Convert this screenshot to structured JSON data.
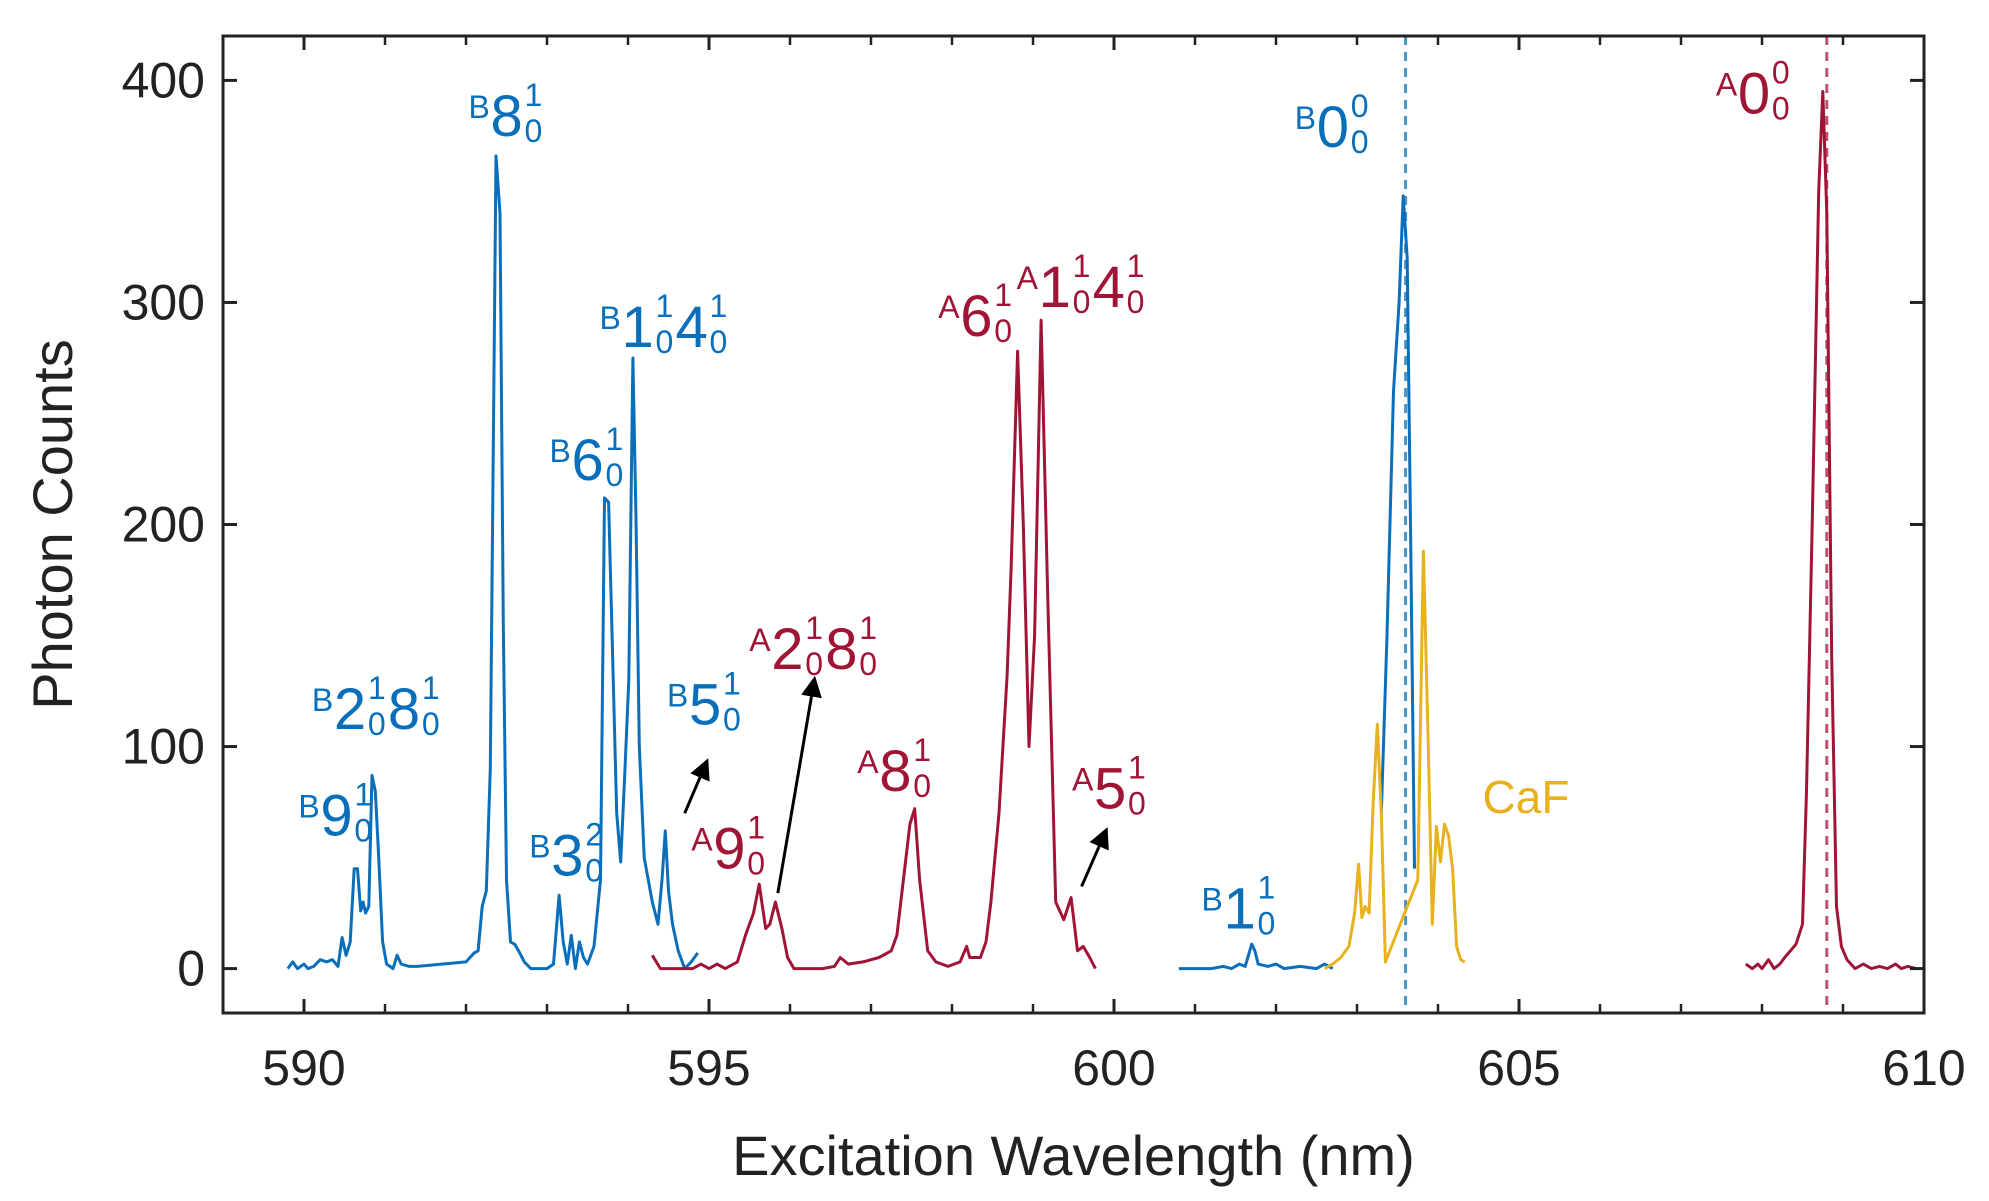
{
  "chart_data": {
    "type": "line",
    "xlabel": "Excitation Wavelength (nm)",
    "ylabel": "Photon Counts",
    "xlim": [
      589,
      610
    ],
    "ylim": [
      -20,
      420
    ],
    "x_ticks": [
      590,
      595,
      600,
      605,
      610
    ],
    "x_minor_ticks": [
      591,
      592,
      593,
      594,
      596,
      597,
      598,
      599,
      601,
      602,
      603,
      604,
      606,
      607,
      608,
      609
    ],
    "y_ticks": [
      0,
      100,
      200,
      300,
      400
    ],
    "colors": {
      "B": "#0a6fba",
      "A": "#a01535",
      "CaF": "#e8b11e",
      "arrow": "#000000"
    },
    "series": [
      {
        "name": "B",
        "color": "#0a6fba",
        "points": [
          [
            589.8,
            0
          ],
          [
            589.86,
            3
          ],
          [
            589.92,
            0
          ],
          [
            590.0,
            2
          ],
          [
            590.05,
            0
          ],
          [
            590.12,
            1
          ],
          [
            590.2,
            4
          ],
          [
            590.28,
            3
          ],
          [
            590.35,
            4
          ],
          [
            590.42,
            1
          ],
          [
            590.47,
            14
          ],
          [
            590.52,
            6
          ],
          [
            590.57,
            12
          ],
          [
            590.62,
            45
          ],
          [
            590.66,
            45
          ],
          [
            590.7,
            26
          ],
          [
            590.73,
            30
          ],
          [
            590.76,
            25
          ],
          [
            590.8,
            28
          ],
          [
            590.84,
            87
          ],
          [
            590.88,
            80
          ],
          [
            590.92,
            52
          ],
          [
            590.97,
            12
          ],
          [
            591.02,
            2
          ],
          [
            591.1,
            0
          ],
          [
            591.15,
            6
          ],
          [
            591.2,
            2
          ],
          [
            591.3,
            1
          ],
          [
            591.4,
            1
          ],
          [
            592.0,
            3
          ],
          [
            592.1,
            7
          ],
          [
            592.15,
            8
          ],
          [
            592.2,
            28
          ],
          [
            592.25,
            35
          ],
          [
            592.3,
            90
          ],
          [
            592.37,
            366
          ],
          [
            592.42,
            340
          ],
          [
            592.46,
            155
          ],
          [
            592.5,
            40
          ],
          [
            592.55,
            12
          ],
          [
            592.6,
            11
          ],
          [
            592.65,
            8
          ],
          [
            592.72,
            3
          ],
          [
            592.8,
            0
          ],
          [
            593.0,
            0
          ],
          [
            593.08,
            2
          ],
          [
            593.15,
            33
          ],
          [
            593.2,
            12
          ],
          [
            593.25,
            2
          ],
          [
            593.3,
            15
          ],
          [
            593.35,
            0
          ],
          [
            593.4,
            12
          ],
          [
            593.45,
            5
          ],
          [
            593.5,
            2
          ],
          [
            593.58,
            10
          ],
          [
            593.66,
            40
          ],
          [
            593.71,
            212
          ],
          [
            593.76,
            210
          ],
          [
            593.8,
            155
          ],
          [
            593.86,
            70
          ],
          [
            593.91,
            48
          ],
          [
            593.96,
            88
          ],
          [
            594.01,
            130
          ],
          [
            594.06,
            275
          ],
          [
            594.1,
            200
          ],
          [
            594.14,
            100
          ],
          [
            594.2,
            50
          ],
          [
            594.3,
            30
          ],
          [
            594.37,
            20
          ],
          [
            594.42,
            40
          ],
          [
            594.46,
            62
          ],
          [
            594.5,
            35
          ],
          [
            594.55,
            20
          ],
          [
            594.62,
            8
          ],
          [
            594.7,
            0
          ],
          [
            594.78,
            3
          ],
          [
            594.86,
            7
          ]
        ]
      },
      {
        "name": "B",
        "color": "#0a6fba",
        "points": [
          [
            600.8,
            0
          ],
          [
            601.0,
            0
          ],
          [
            601.2,
            0
          ],
          [
            601.35,
            1
          ],
          [
            601.45,
            0
          ],
          [
            601.55,
            2
          ],
          [
            601.62,
            1
          ],
          [
            601.7,
            11
          ],
          [
            601.74,
            8
          ],
          [
            601.78,
            2
          ],
          [
            601.9,
            1
          ],
          [
            602.0,
            2
          ],
          [
            602.1,
            0
          ],
          [
            602.3,
            1
          ],
          [
            602.5,
            0
          ],
          [
            602.6,
            2
          ],
          [
            602.7,
            0
          ]
        ]
      },
      {
        "name": "B",
        "color": "#0a6fba",
        "points": [
          [
            603.3,
            70
          ],
          [
            603.37,
            150
          ],
          [
            603.45,
            260
          ],
          [
            603.52,
            300
          ],
          [
            603.57,
            348
          ],
          [
            603.62,
            320
          ],
          [
            603.66,
            200
          ],
          [
            603.71,
            45
          ]
        ]
      },
      {
        "name": "A",
        "color": "#a01535",
        "points": [
          [
            594.3,
            6
          ],
          [
            594.4,
            0
          ],
          [
            594.6,
            0
          ],
          [
            594.8,
            0
          ],
          [
            594.9,
            2
          ],
          [
            595.0,
            0
          ],
          [
            595.1,
            2
          ],
          [
            595.2,
            0
          ],
          [
            595.35,
            3
          ],
          [
            595.45,
            15
          ],
          [
            595.55,
            25
          ],
          [
            595.62,
            38
          ],
          [
            595.7,
            18
          ],
          [
            595.75,
            20
          ],
          [
            595.82,
            30
          ],
          [
            595.9,
            18
          ],
          [
            595.97,
            5
          ],
          [
            596.05,
            0
          ],
          [
            596.2,
            0
          ],
          [
            596.4,
            0
          ],
          [
            596.55,
            1
          ],
          [
            596.62,
            5
          ],
          [
            596.72,
            2
          ],
          [
            596.9,
            3
          ],
          [
            597.1,
            5
          ],
          [
            597.25,
            8
          ],
          [
            597.32,
            15
          ],
          [
            597.4,
            40
          ],
          [
            597.48,
            65
          ],
          [
            597.54,
            72
          ],
          [
            597.6,
            40
          ],
          [
            597.7,
            8
          ],
          [
            597.8,
            3
          ],
          [
            597.95,
            1
          ],
          [
            598.1,
            3
          ],
          [
            598.18,
            10
          ],
          [
            598.22,
            5
          ],
          [
            598.35,
            5
          ],
          [
            598.42,
            12
          ],
          [
            598.48,
            30
          ],
          [
            598.58,
            70
          ],
          [
            598.68,
            132
          ],
          [
            598.73,
            180
          ],
          [
            598.81,
            278
          ],
          [
            598.88,
            200
          ],
          [
            598.95,
            100
          ],
          [
            599.02,
            150
          ],
          [
            599.1,
            292
          ],
          [
            599.18,
            170
          ],
          [
            599.28,
            30
          ],
          [
            599.38,
            22
          ],
          [
            599.47,
            32
          ],
          [
            599.55,
            8
          ],
          [
            599.62,
            10
          ],
          [
            599.7,
            5
          ],
          [
            599.77,
            0
          ]
        ]
      },
      {
        "name": "A",
        "color": "#a01535",
        "points": [
          [
            607.8,
            2
          ],
          [
            607.88,
            0
          ],
          [
            607.95,
            2
          ],
          [
            608.0,
            0
          ],
          [
            608.08,
            4
          ],
          [
            608.15,
            0
          ],
          [
            608.22,
            2
          ],
          [
            608.28,
            5
          ],
          [
            608.35,
            8
          ],
          [
            608.42,
            11
          ],
          [
            608.5,
            20
          ],
          [
            608.55,
            80
          ],
          [
            608.62,
            200
          ],
          [
            608.7,
            350
          ],
          [
            608.75,
            395
          ],
          [
            608.8,
            340
          ],
          [
            608.86,
            140
          ],
          [
            608.92,
            28
          ],
          [
            608.98,
            10
          ],
          [
            609.05,
            4
          ],
          [
            609.15,
            0
          ],
          [
            609.25,
            2
          ],
          [
            609.35,
            0
          ],
          [
            609.45,
            1
          ],
          [
            609.55,
            0
          ],
          [
            609.65,
            2
          ],
          [
            609.72,
            0
          ],
          [
            609.8,
            1
          ],
          [
            609.9,
            0
          ]
        ]
      },
      {
        "name": "CaF",
        "color": "#e8b11e",
        "points": [
          [
            602.6,
            0
          ],
          [
            602.7,
            2
          ],
          [
            602.8,
            5
          ],
          [
            602.9,
            10
          ],
          [
            602.97,
            25
          ],
          [
            603.02,
            47
          ],
          [
            603.06,
            23
          ],
          [
            603.1,
            28
          ],
          [
            603.15,
            25
          ],
          [
            603.2,
            75
          ],
          [
            603.25,
            110
          ],
          [
            603.3,
            70
          ],
          [
            603.35,
            3
          ],
          [
            603.75,
            40
          ],
          [
            603.82,
            188
          ],
          [
            603.88,
            100
          ],
          [
            603.93,
            20
          ],
          [
            603.98,
            64
          ],
          [
            604.03,
            48
          ],
          [
            604.08,
            65
          ],
          [
            604.13,
            60
          ],
          [
            604.18,
            45
          ],
          [
            604.23,
            10
          ],
          [
            604.28,
            4
          ],
          [
            604.33,
            3
          ]
        ]
      }
    ],
    "reference_lines": [
      {
        "x": 603.6,
        "color": "#4a93c2"
      },
      {
        "x": 608.8,
        "color": "#c0506b"
      }
    ],
    "annotations": [
      {
        "id": "B-9-0-1",
        "text": "B9⁰¹",
        "pre": "B",
        "parts": [
          [
            "9",
            "0",
            "1"
          ]
        ],
        "x": 590.4,
        "y": 60,
        "color": "#0a6fba"
      },
      {
        "id": "B-2-0-1-8-0-1",
        "text": "B2⁰¹8⁰¹",
        "pre": "B",
        "parts": [
          [
            "2",
            "0",
            "1"
          ],
          [
            "8",
            "0",
            "1"
          ]
        ],
        "x": 590.9,
        "y": 108,
        "color": "#0a6fba"
      },
      {
        "id": "B-8-0-1",
        "text": "B8⁰¹",
        "pre": "B",
        "parts": [
          [
            "8",
            "0",
            "1"
          ]
        ],
        "x": 592.5,
        "y": 375,
        "color": "#0a6fba"
      },
      {
        "id": "B-3-0-2",
        "text": "B3⁰²",
        "pre": "B",
        "parts": [
          [
            "3",
            "0",
            "2"
          ]
        ],
        "x": 593.25,
        "y": 42,
        "color": "#0a6fba"
      },
      {
        "id": "B-6-0-1",
        "text": "B6⁰¹",
        "pre": "B",
        "parts": [
          [
            "6",
            "0",
            "1"
          ]
        ],
        "x": 593.5,
        "y": 220,
        "color": "#0a6fba"
      },
      {
        "id": "B-1-0-1-4-0-1",
        "text": "B1⁰¹4⁰¹",
        "pre": "B",
        "parts": [
          [
            "1",
            "0",
            "1"
          ],
          [
            "4",
            "0",
            "1"
          ]
        ],
        "x": 594.45,
        "y": 280,
        "color": "#0a6fba"
      },
      {
        "id": "B-5-0-1",
        "text": "B5⁰¹",
        "pre": "B",
        "parts": [
          [
            "5",
            "0",
            "1"
          ]
        ],
        "x": 594.95,
        "y": 110,
        "color": "#0a6fba"
      },
      {
        "id": "A-9-0-1",
        "text": "A9⁰¹",
        "pre": "A",
        "parts": [
          [
            "9",
            "0",
            "1"
          ]
        ],
        "x": 595.25,
        "y": 45,
        "color": "#a01535"
      },
      {
        "id": "A-2-0-1-8-0-1",
        "text": "A2⁰¹8⁰¹",
        "pre": "A",
        "parts": [
          [
            "2",
            "0",
            "1"
          ],
          [
            "8",
            "0",
            "1"
          ]
        ],
        "x": 596.3,
        "y": 135,
        "color": "#a01535"
      },
      {
        "id": "A-8-0-1",
        "text": "A8⁰¹",
        "pre": "A",
        "parts": [
          [
            "8",
            "0",
            "1"
          ]
        ],
        "x": 597.3,
        "y": 80,
        "color": "#a01535"
      },
      {
        "id": "A-6-0-1",
        "text": "A6⁰¹",
        "pre": "A",
        "parts": [
          [
            "6",
            "0",
            "1"
          ]
        ],
        "x": 598.3,
        "y": 285,
        "color": "#a01535"
      },
      {
        "id": "A-1-0-1-4-0-1",
        "text": "A1⁰¹4⁰¹",
        "pre": "A",
        "parts": [
          [
            "1",
            "0",
            "1"
          ],
          [
            "4",
            "0",
            "1"
          ]
        ],
        "x": 599.6,
        "y": 298,
        "color": "#a01535"
      },
      {
        "id": "A-5-0-1",
        "text": "A5⁰¹",
        "pre": "A",
        "parts": [
          [
            "5",
            "0",
            "1"
          ]
        ],
        "x": 599.95,
        "y": 72,
        "color": "#a01535"
      },
      {
        "id": "B-1-0-1",
        "text": "B1⁰¹",
        "pre": "B",
        "parts": [
          [
            "1",
            "0",
            "1"
          ]
        ],
        "x": 601.55,
        "y": 18,
        "color": "#0a6fba"
      },
      {
        "id": "B-0-0-0",
        "text": "B0⁰⁰",
        "pre": "B",
        "parts": [
          [
            "0",
            "0",
            "0"
          ]
        ],
        "x": 602.7,
        "y": 370,
        "color": "#0a6fba"
      },
      {
        "id": "A-0-0-0",
        "text": "A0⁰⁰",
        "pre": "A",
        "parts": [
          [
            "0",
            "0",
            "0"
          ]
        ],
        "x": 607.9,
        "y": 385,
        "color": "#a01535"
      }
    ],
    "series_label": {
      "text": "CaF",
      "x": 604.55,
      "y": 70,
      "color": "#e8b11e"
    },
    "arrows": [
      {
        "from": [
          594.7,
          70
        ],
        "to": [
          594.97,
          93
        ]
      },
      {
        "from": [
          595.85,
          34
        ],
        "to": [
          596.3,
          130
        ]
      },
      {
        "from": [
          599.6,
          37
        ],
        "to": [
          599.9,
          62
        ]
      }
    ]
  }
}
